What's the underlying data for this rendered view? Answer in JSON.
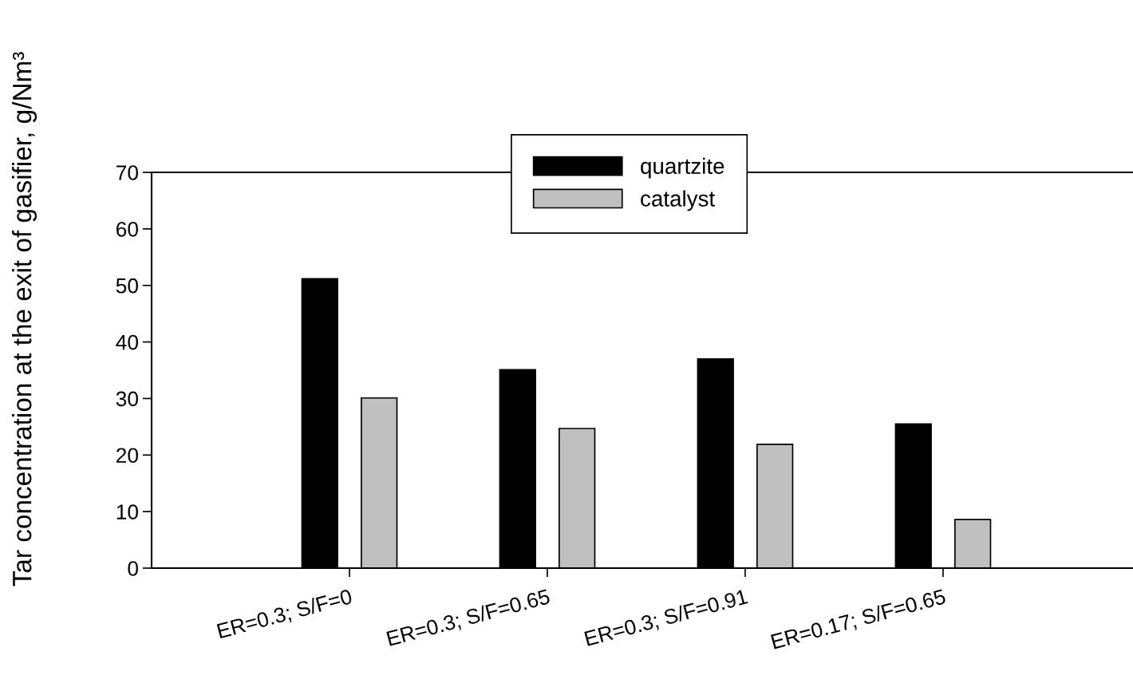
{
  "chart_data": {
    "type": "bar",
    "ylabel": "Tar concentration at the exit of gasifier, g/Nm³",
    "categories": [
      "ER=0.3; S/F=0",
      "ER=0.3; S/F=0.65",
      "ER=0.3; S/F=0.91",
      "ER=0.17; S/F=0.65"
    ],
    "series": [
      {
        "name": "quartzite",
        "color": "#000000",
        "values": [
          51.2,
          35.1,
          37.0,
          25.5
        ]
      },
      {
        "name": "catalyst",
        "color": "#c0c0c0",
        "values": [
          30.1,
          24.7,
          21.9,
          8.6
        ]
      }
    ],
    "ylim": [
      0,
      70
    ],
    "yticks": [
      0,
      10,
      20,
      30,
      40,
      50,
      60,
      70
    ],
    "grid": false,
    "legend": "top"
  }
}
